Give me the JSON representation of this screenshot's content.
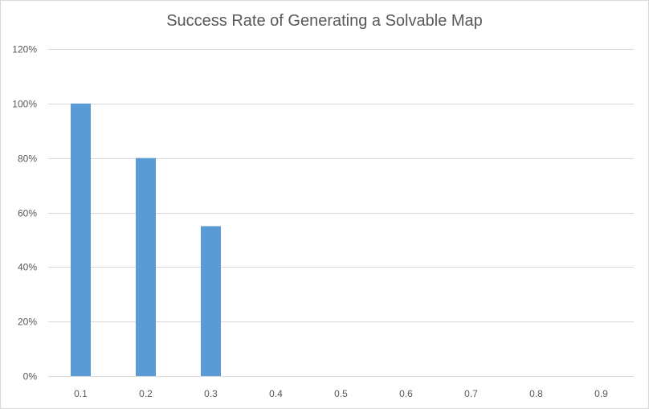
{
  "chart_data": {
    "type": "bar",
    "title": "Success Rate of Generating a Solvable Map",
    "xlabel": "",
    "ylabel": "",
    "categories": [
      "0.1",
      "0.2",
      "0.3",
      "0.4",
      "0.5",
      "0.6",
      "0.7",
      "0.8",
      "0.9"
    ],
    "series": [
      {
        "values": [
          1.0,
          0.8,
          0.55,
          0,
          0,
          0,
          0,
          0,
          0
        ],
        "color": "#5b9bd5"
      }
    ],
    "ylim": [
      0,
      1.2
    ],
    "yticks": [
      "0%",
      "20%",
      "40%",
      "60%",
      "80%",
      "100%",
      "120%"
    ],
    "grid": true,
    "legend": "none",
    "colors": {
      "gridline": "#d9d9d9",
      "axis": "#d9d9d9",
      "text": "#595959"
    }
  }
}
